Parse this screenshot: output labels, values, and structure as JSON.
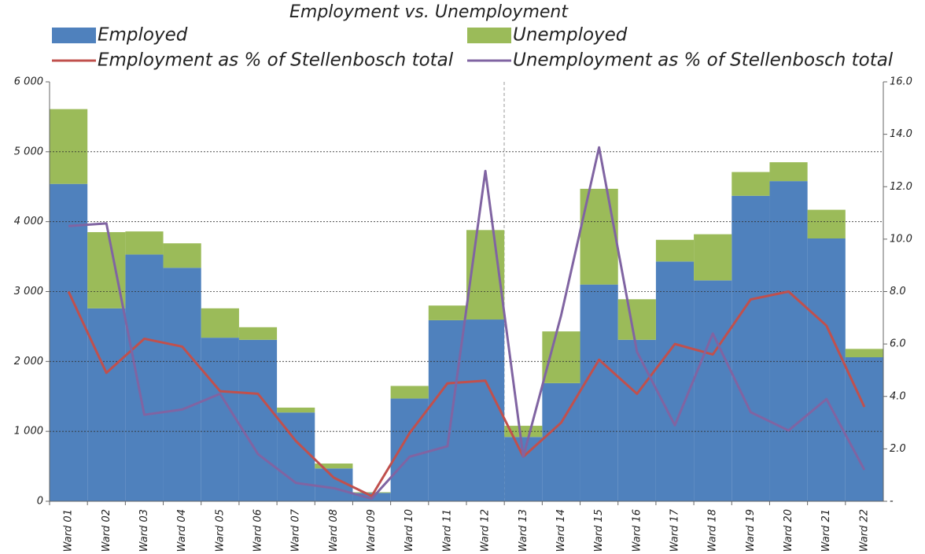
{
  "chart_data": {
    "type": "bar",
    "stacked": true,
    "title": "Employment vs. Unemployment",
    "categories": [
      "Ward 01",
      "Ward 02",
      "Ward 03",
      "Ward 04",
      "Ward 05",
      "Ward 06",
      "Ward 07",
      "Ward 08",
      "Ward 09",
      "Ward 10",
      "Ward 11",
      "Ward 12",
      "Ward 13",
      "Ward 14",
      "Ward 15",
      "Ward 16",
      "Ward 17",
      "Ward 18",
      "Ward 19",
      "Ward 20",
      "Ward 21",
      "Ward 22"
    ],
    "series": [
      {
        "name": "Employed",
        "type": "bar",
        "color": "#4f81bd",
        "values": [
          4540,
          2760,
          3530,
          3340,
          2340,
          2310,
          1270,
          470,
          120,
          1470,
          2590,
          2600,
          920,
          1690,
          3100,
          2310,
          3430,
          3160,
          4370,
          4580,
          3760,
          2060
        ]
      },
      {
        "name": "Unemployed",
        "type": "bar",
        "color": "#9bbb59",
        "values": [
          1070,
          1090,
          330,
          350,
          420,
          180,
          70,
          70,
          10,
          180,
          210,
          1280,
          160,
          740,
          1370,
          580,
          310,
          660,
          340,
          270,
          410,
          120
        ]
      },
      {
        "name": "Employment as % of Stellenbosch total",
        "type": "line",
        "axis": "y2",
        "color": "#c0504d",
        "values": [
          8.0,
          4.9,
          6.2,
          5.9,
          4.2,
          4.1,
          2.3,
          0.9,
          0.2,
          2.6,
          4.5,
          4.6,
          1.7,
          3.0,
          5.4,
          4.1,
          6.0,
          5.6,
          7.7,
          8.0,
          6.7,
          3.6
        ]
      },
      {
        "name": "Unemployment as % of Stellenbosch total",
        "type": "line",
        "axis": "y2",
        "color": "#8064a2",
        "values": [
          10.5,
          10.6,
          3.3,
          3.5,
          4.1,
          1.8,
          0.7,
          0.5,
          0.1,
          1.7,
          2.1,
          12.6,
          1.7,
          7.1,
          13.5,
          5.7,
          2.9,
          6.4,
          3.4,
          2.7,
          3.9,
          1.2
        ]
      }
    ],
    "ylim": [
      0,
      6000
    ],
    "yticks": [
      0,
      {
        "value": 1000,
        "label": "1 000"
      },
      {
        "value": 2000,
        "label": "2 000"
      },
      {
        "value": 3000,
        "label": "3 000"
      },
      {
        "value": 4000,
        "label": "4 000"
      },
      {
        "value": 5000,
        "label": "5 000"
      },
      {
        "value": 6000,
        "label": "6 000"
      }
    ],
    "y2lim": [
      0,
      16
    ],
    "y2ticks": [
      {
        "value": 0,
        "label": "-"
      },
      {
        "value": 2,
        "label": "2.0"
      },
      {
        "value": 4,
        "label": "4.0"
      },
      {
        "value": 6,
        "label": "6.0"
      },
      {
        "value": 8,
        "label": "8.0"
      },
      {
        "value": 10,
        "label": "10.0"
      },
      {
        "value": 12,
        "label": "12.0"
      },
      {
        "value": 14,
        "label": "14.0"
      },
      {
        "value": 16,
        "label": "16.0"
      }
    ],
    "grid": true
  }
}
